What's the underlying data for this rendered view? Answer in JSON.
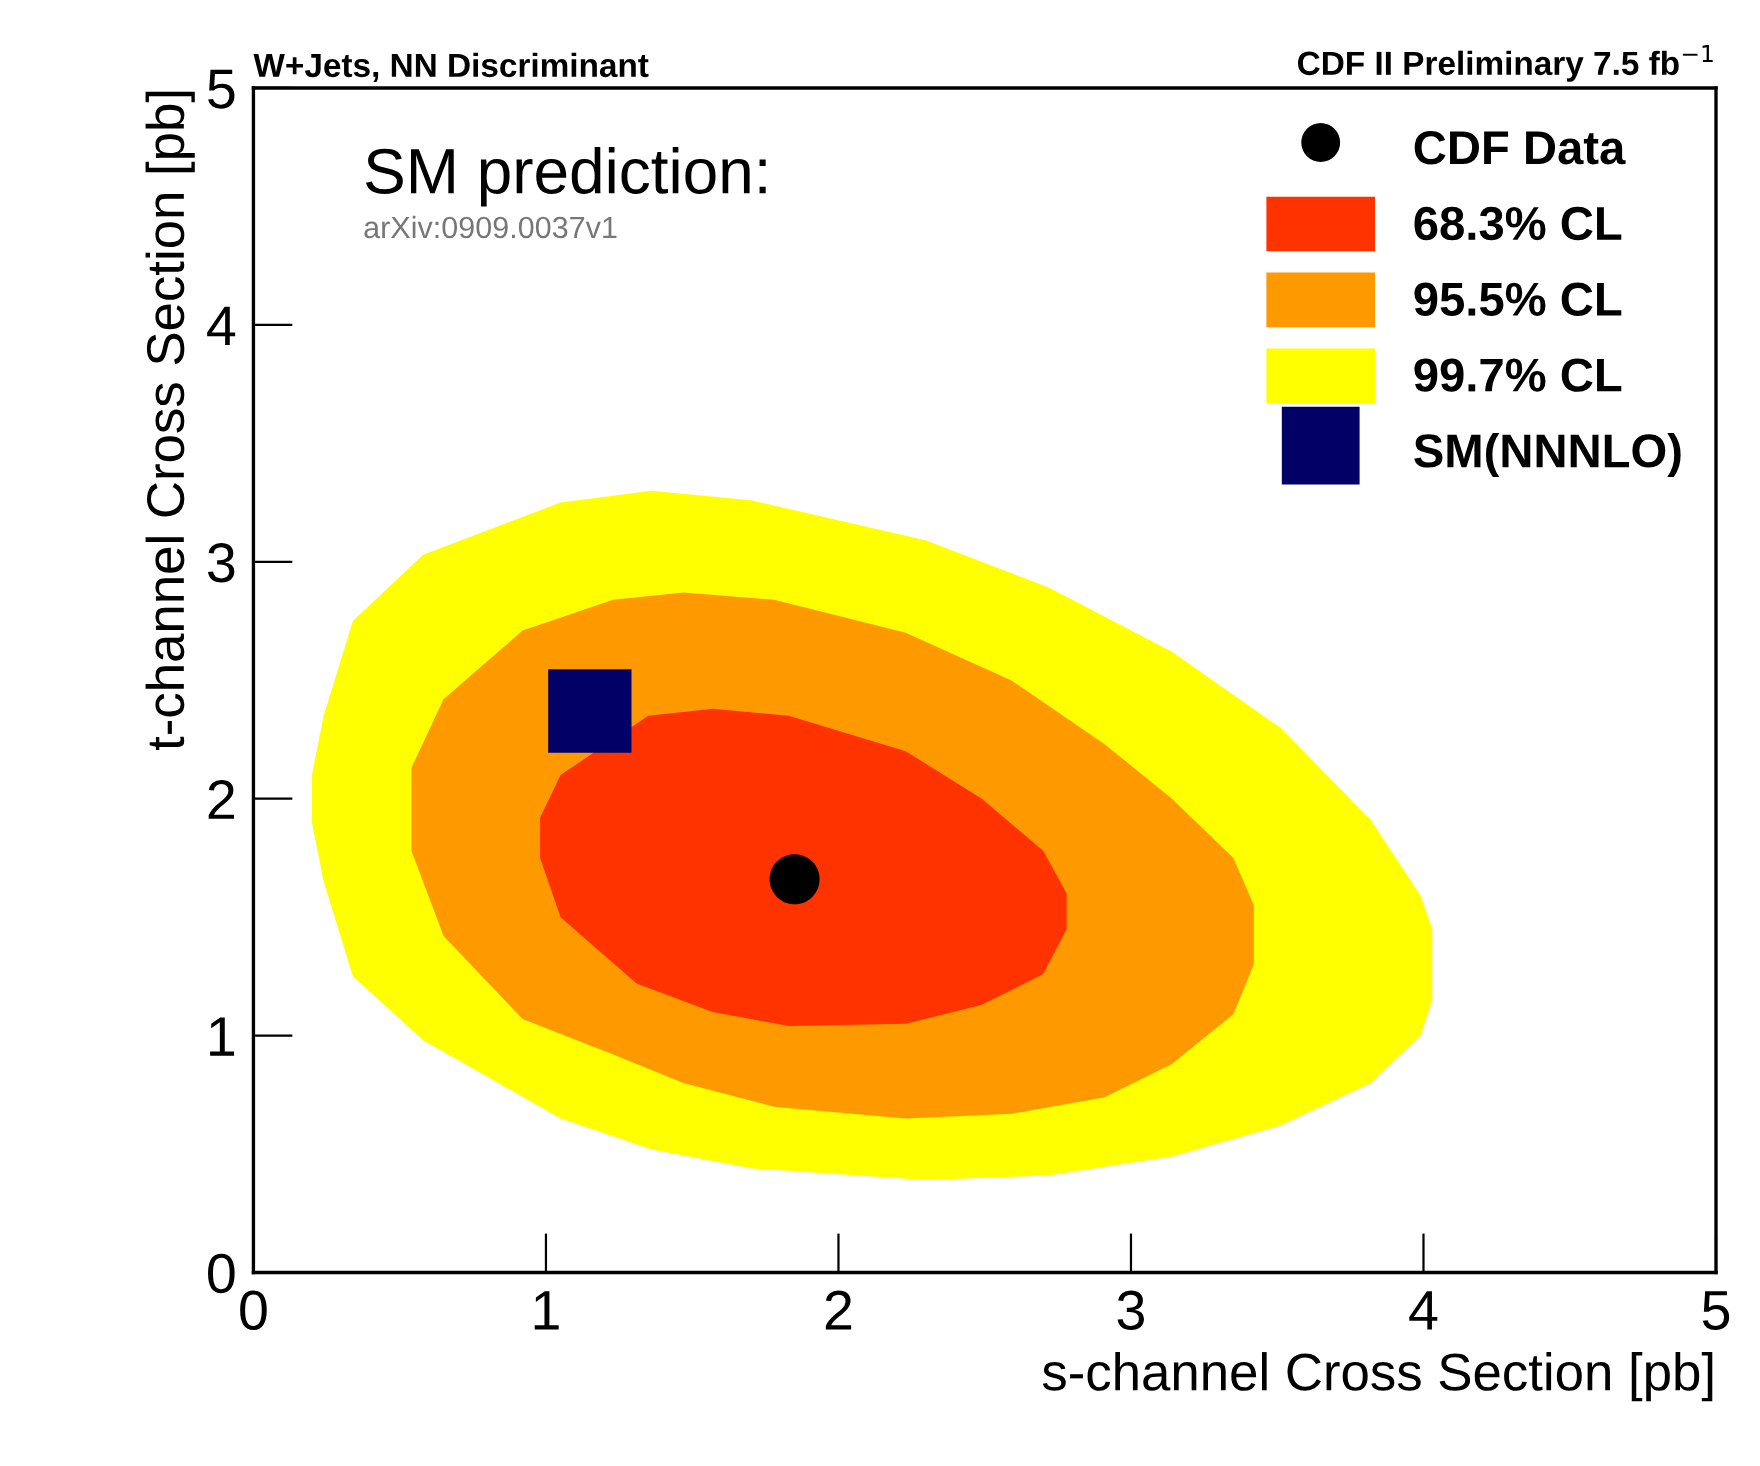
{
  "chart_data": {
    "type": "area",
    "title": "W+Jets, NN Discriminant",
    "subtitle": "CDF II Preliminary 7.5 fb$^{−1}$",
    "xlabel": "s-channel Cross Section [pb]",
    "ylabel": "t-channel Cross Section [pb]",
    "annotations": [
      "SM prediction:",
      "arXiv:0909.0037v1"
    ],
    "xlim": [
      0,
      5
    ],
    "ylim": [
      0,
      5
    ],
    "xticks": [
      0,
      1,
      2,
      3,
      4,
      5
    ],
    "yticks": [
      0,
      1,
      2,
      3,
      4,
      5
    ],
    "grid": false,
    "legend": "top right",
    "series": [
      {
        "type": "scatter",
        "name": "CDF Data",
        "color": "#000000",
        "marker": "circle",
        "x": [
          1.85
        ],
        "values": [
          1.66
        ]
      },
      {
        "name": "68.3% CL",
        "color": "#ff3300",
        "x": [
          0.98,
          1.05,
          1.35,
          1.57,
          1.83,
          2.23,
          2.49,
          2.7,
          2.78,
          2.78,
          2.7,
          2.49,
          2.23,
          1.83,
          1.57,
          1.31,
          1.05,
          0.98
        ],
        "values": [
          1.92,
          2.1,
          2.35,
          2.38,
          2.35,
          2.2,
          2.0,
          1.78,
          1.6,
          1.45,
          1.26,
          1.13,
          1.05,
          1.04,
          1.1,
          1.22,
          1.5,
          1.75
        ]
      },
      {
        "name": "95.5% CL",
        "color": "#ff9900",
        "x": [
          0.54,
          0.65,
          0.92,
          1.23,
          1.47,
          1.78,
          2.23,
          2.59,
          2.91,
          3.14,
          3.35,
          3.42,
          3.42,
          3.35,
          3.14,
          2.91,
          2.59,
          2.23,
          1.78,
          1.47,
          1.23,
          0.92,
          0.65,
          0.54
        ],
        "values": [
          2.13,
          2.42,
          2.71,
          2.84,
          2.87,
          2.84,
          2.7,
          2.5,
          2.23,
          2.0,
          1.75,
          1.55,
          1.3,
          1.09,
          0.88,
          0.74,
          0.67,
          0.65,
          0.7,
          0.8,
          0.92,
          1.07,
          1.42,
          1.78
        ]
      },
      {
        "name": "99.7% CL",
        "color": "#ffff00",
        "x": [
          0.2,
          0.24,
          0.34,
          0.58,
          1.05,
          1.36,
          1.7,
          2.3,
          2.72,
          3.14,
          3.51,
          3.82,
          3.99,
          4.03,
          4.03,
          3.99,
          3.82,
          3.51,
          3.14,
          2.72,
          2.3,
          1.7,
          1.36,
          1.05,
          0.58,
          0.34,
          0.24,
          0.2
        ],
        "values": [
          2.1,
          2.35,
          2.75,
          3.03,
          3.25,
          3.3,
          3.26,
          3.09,
          2.89,
          2.62,
          2.3,
          1.91,
          1.59,
          1.45,
          1.15,
          1.0,
          0.8,
          0.62,
          0.49,
          0.41,
          0.39,
          0.44,
          0.52,
          0.65,
          0.98,
          1.25,
          1.65,
          1.9
        ]
      },
      {
        "type": "scatter",
        "name": "SM(NNNLO)",
        "color": "#000066",
        "marker": "square",
        "x": [
          1.15
        ],
        "values": [
          2.37
        ]
      }
    ]
  }
}
